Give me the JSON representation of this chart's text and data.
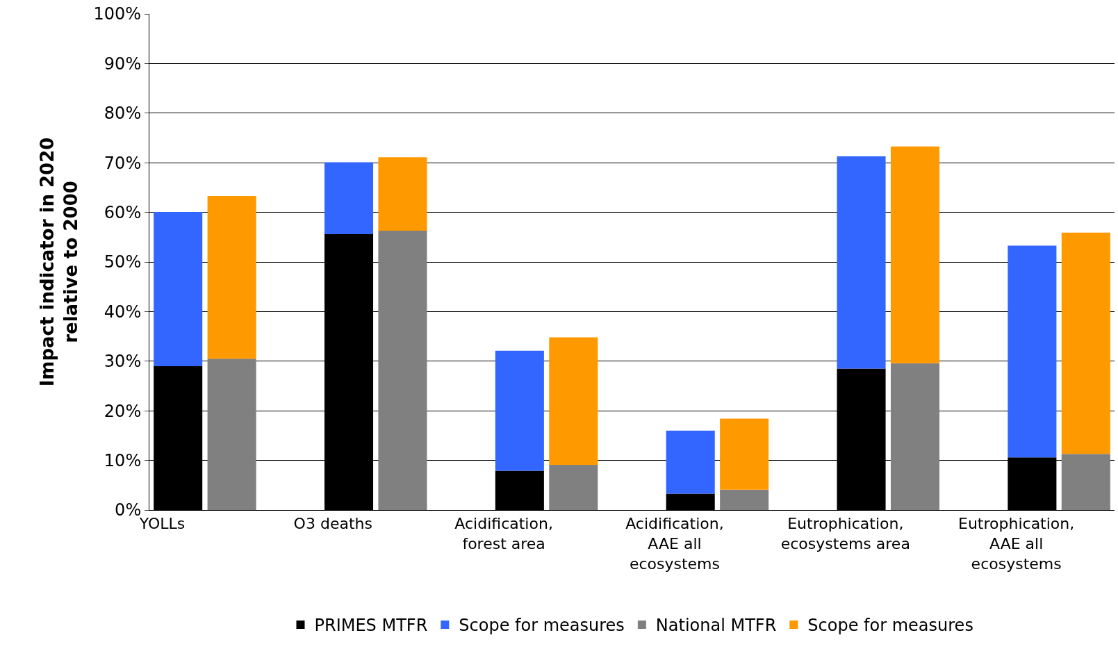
{
  "chart_data": {
    "type": "bar",
    "stacked": true,
    "ylabel": "Impact indicator in 2020 relative to 2000",
    "categories": [
      "YOLLs",
      null,
      "O3 deaths",
      null,
      "Acidification, forest area",
      null,
      "Acidification, AAE all ecosystems",
      null,
      "Eutrophication, ecosystems area",
      null,
      "Eutrophication, AAE all ecosystems",
      null
    ],
    "series": [
      {
        "name": "PRIMES MTFR",
        "color": "#000000",
        "values": [
          29.0,
          null,
          55.6,
          null,
          7.9,
          null,
          3.3,
          null,
          28.5,
          null,
          10.6,
          null
        ]
      },
      {
        "name": "Scope for measures",
        "color": "#3366ff",
        "values": [
          31.1,
          null,
          14.5,
          null,
          24.2,
          null,
          12.7,
          null,
          42.8,
          null,
          42.7,
          null
        ]
      },
      {
        "name": "National MTFR",
        "color": "#808080",
        "values": [
          null,
          30.5,
          null,
          56.3,
          null,
          9.1,
          null,
          4.1,
          null,
          29.6,
          null,
          11.3
        ]
      },
      {
        "name": "Scope for measures",
        "color": "#ff9900",
        "values": [
          null,
          32.8,
          null,
          14.8,
          null,
          25.7,
          null,
          14.3,
          null,
          43.7,
          null,
          44.6
        ]
      }
    ],
    "ylim": [
      0,
      100
    ],
    "yticks": [
      {
        "value": 0,
        "label": "0%"
      },
      {
        "value": 10,
        "label": "10%"
      },
      {
        "value": 20,
        "label": "20%"
      },
      {
        "value": 30,
        "label": "30%"
      },
      {
        "value": 40,
        "label": "40%"
      },
      {
        "value": 50,
        "label": "50%"
      },
      {
        "value": 60,
        "label": "60%"
      },
      {
        "value": 70,
        "label": "70%"
      },
      {
        "value": 80,
        "label": "80%"
      },
      {
        "value": 90,
        "label": "90%"
      },
      {
        "value": 100,
        "label": "100%"
      }
    ],
    "grid": "y",
    "legend": "bottom"
  }
}
